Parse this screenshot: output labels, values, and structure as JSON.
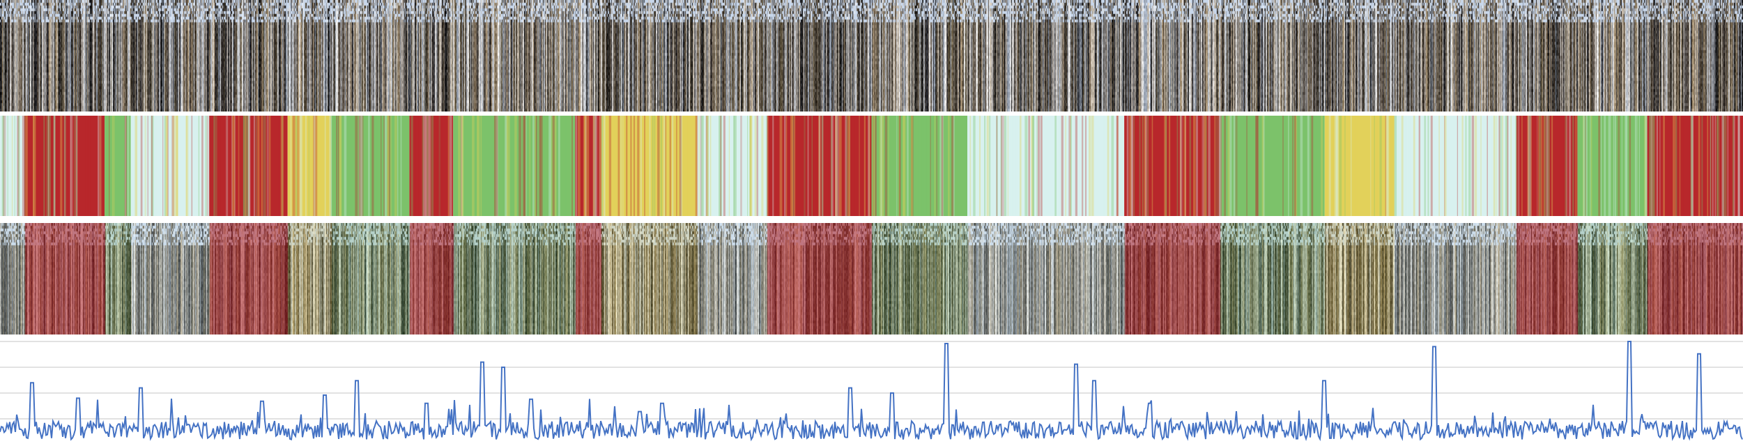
{
  "panels": [
    {
      "id": "frames-top",
      "kind": "video-frame-strip"
    },
    {
      "id": "heatmap",
      "kind": "heatmap-strip"
    },
    {
      "id": "overlay",
      "kind": "frame-strip-with-heatmap-overlay"
    },
    {
      "id": "plot",
      "kind": "line-plot"
    }
  ],
  "colors": {
    "line": "#4472c4",
    "grid": "#d9d9d9",
    "heat_high": "#b8272b",
    "heat_mid_yellow": "#e2d15a",
    "heat_mid_green": "#7cc26a",
    "heat_low": "#d8f1ef"
  },
  "chart_data": [
    {
      "type": "heatmap",
      "title": "",
      "xlabel": "",
      "ylabel": "",
      "segments": [
        {
          "x0": 0.0,
          "x1": 0.014,
          "level": "low"
        },
        {
          "x0": 0.014,
          "x1": 0.06,
          "level": "high"
        },
        {
          "x0": 0.06,
          "x1": 0.075,
          "level": "mid-green"
        },
        {
          "x0": 0.075,
          "x1": 0.12,
          "level": "low"
        },
        {
          "x0": 0.12,
          "x1": 0.165,
          "level": "high"
        },
        {
          "x0": 0.165,
          "x1": 0.19,
          "level": "mid-yellow"
        },
        {
          "x0": 0.19,
          "x1": 0.235,
          "level": "mid-green"
        },
        {
          "x0": 0.235,
          "x1": 0.26,
          "level": "high"
        },
        {
          "x0": 0.26,
          "x1": 0.33,
          "level": "mid-green"
        },
        {
          "x0": 0.33,
          "x1": 0.345,
          "level": "high"
        },
        {
          "x0": 0.345,
          "x1": 0.4,
          "level": "mid-yellow"
        },
        {
          "x0": 0.4,
          "x1": 0.44,
          "level": "low"
        },
        {
          "x0": 0.44,
          "x1": 0.5,
          "level": "high"
        },
        {
          "x0": 0.5,
          "x1": 0.555,
          "level": "mid-green"
        },
        {
          "x0": 0.555,
          "x1": 0.645,
          "level": "low"
        },
        {
          "x0": 0.645,
          "x1": 0.7,
          "level": "high"
        },
        {
          "x0": 0.7,
          "x1": 0.76,
          "level": "mid-green"
        },
        {
          "x0": 0.76,
          "x1": 0.8,
          "level": "mid-yellow"
        },
        {
          "x0": 0.8,
          "x1": 0.87,
          "level": "low"
        },
        {
          "x0": 0.87,
          "x1": 0.905,
          "level": "high"
        },
        {
          "x0": 0.905,
          "x1": 0.945,
          "level": "mid-green"
        },
        {
          "x0": 0.945,
          "x1": 1.0,
          "level": "high"
        }
      ]
    },
    {
      "type": "line",
      "title": "",
      "xlabel": "",
      "ylabel": "",
      "grid": true,
      "legend": "none",
      "x_range": [
        0,
        1
      ],
      "ylim": [
        0,
        1
      ],
      "gridlines_y": [
        0.25,
        0.5,
        0.75,
        1.0
      ],
      "peaks": [
        {
          "x": 0.018,
          "y": 0.6
        },
        {
          "x": 0.045,
          "y": 0.45
        },
        {
          "x": 0.081,
          "y": 0.55
        },
        {
          "x": 0.15,
          "y": 0.42
        },
        {
          "x": 0.186,
          "y": 0.48
        },
        {
          "x": 0.205,
          "y": 0.62
        },
        {
          "x": 0.245,
          "y": 0.4
        },
        {
          "x": 0.277,
          "y": 0.8
        },
        {
          "x": 0.289,
          "y": 0.75
        },
        {
          "x": 0.305,
          "y": 0.44
        },
        {
          "x": 0.367,
          "y": 0.32
        },
        {
          "x": 0.38,
          "y": 0.4
        },
        {
          "x": 0.488,
          "y": 0.55
        },
        {
          "x": 0.512,
          "y": 0.5
        },
        {
          "x": 0.543,
          "y": 0.98
        },
        {
          "x": 0.617,
          "y": 0.78
        },
        {
          "x": 0.628,
          "y": 0.62
        },
        {
          "x": 0.66,
          "y": 0.4
        },
        {
          "x": 0.76,
          "y": 0.62
        },
        {
          "x": 0.823,
          "y": 0.95
        },
        {
          "x": 0.935,
          "y": 1.0
        },
        {
          "x": 0.975,
          "y": 0.88
        }
      ]
    }
  ]
}
